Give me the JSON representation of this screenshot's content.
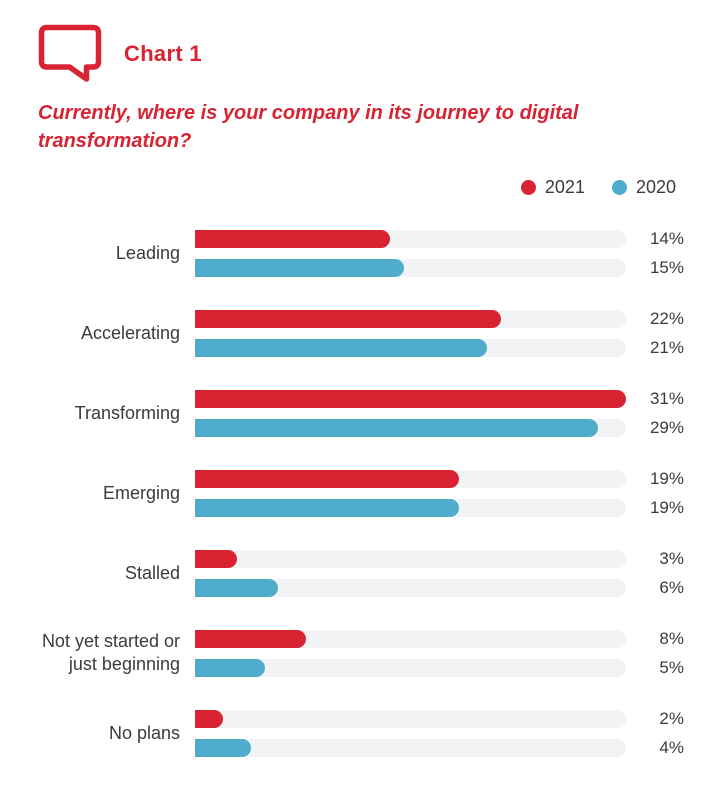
{
  "header": {
    "badge_label": "Chart 1",
    "badge_icon": "speech-bubble-icon"
  },
  "question": {
    "full_text": "Currently, where is your company in its journey to digital transformation?",
    "line1": "Currently, where is your company in its journey to digital",
    "line2": "transformation?"
  },
  "legend": {
    "position": "top-right",
    "items": [
      {
        "label": "2021",
        "color": "#d82332"
      },
      {
        "label": "2020",
        "color": "#4fadcb"
      }
    ]
  },
  "chart_data": {
    "type": "bar",
    "orientation": "horizontal",
    "title": "Chart 1",
    "subtitle": "Currently, where is your company in its journey to digital transformation?",
    "categories": [
      "Leading",
      "Accelerating",
      "Transforming",
      "Emerging",
      "Stalled",
      "Not yet started or just beginning",
      "No plans"
    ],
    "series": [
      {
        "name": "2021",
        "color": "#d82332",
        "values": [
          14,
          22,
          31,
          19,
          3,
          8,
          2
        ]
      },
      {
        "name": "2020",
        "color": "#4fadcb",
        "values": [
          15,
          21,
          29,
          19,
          6,
          5,
          4
        ]
      }
    ],
    "value_suffix": "%",
    "xlim": [
      0,
      31
    ],
    "grid": false,
    "track_color": "#f2f3f4",
    "legend_position": "top-right"
  },
  "colors": {
    "accent_red": "#d82332",
    "accent_blue": "#4fadcb",
    "track": "#f2f3f4",
    "text": "#3b3a3c",
    "background": "#ffffff"
  }
}
